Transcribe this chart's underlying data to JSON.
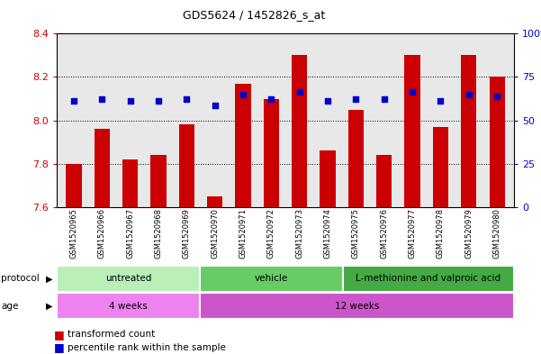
{
  "title": "GDS5624 / 1452826_s_at",
  "samples": [
    "GSM1520965",
    "GSM1520966",
    "GSM1520967",
    "GSM1520968",
    "GSM1520969",
    "GSM1520970",
    "GSM1520971",
    "GSM1520972",
    "GSM1520973",
    "GSM1520974",
    "GSM1520975",
    "GSM1520976",
    "GSM1520977",
    "GSM1520978",
    "GSM1520979",
    "GSM1520980"
  ],
  "bar_values": [
    7.8,
    7.96,
    7.82,
    7.84,
    7.98,
    7.65,
    8.17,
    8.1,
    8.3,
    7.86,
    8.05,
    7.84,
    8.3,
    7.97,
    8.3,
    8.2
  ],
  "dot_values": [
    8.09,
    8.1,
    8.09,
    8.09,
    8.1,
    8.07,
    8.12,
    8.1,
    8.13,
    8.09,
    8.1,
    8.1,
    8.13,
    8.09,
    8.12,
    8.11
  ],
  "ylim_left": [
    7.6,
    8.4
  ],
  "yticks_left": [
    7.6,
    7.8,
    8.0,
    8.2,
    8.4
  ],
  "yticks_right": [
    0,
    25,
    50,
    75,
    100
  ],
  "bar_color": "#cc0000",
  "dot_color": "#0000cc",
  "bar_bottom": 7.6,
  "protocol_groups": [
    {
      "label": "untreated",
      "start": 0,
      "end": 5
    },
    {
      "label": "vehicle",
      "start": 5,
      "end": 10
    },
    {
      "label": "L-methionine and valproic acid",
      "start": 10,
      "end": 16
    }
  ],
  "protocol_colors": [
    "#b8f0b8",
    "#66cc66",
    "#44aa44"
  ],
  "age_groups": [
    {
      "label": "4 weeks",
      "start": 0,
      "end": 5
    },
    {
      "label": "12 weeks",
      "start": 5,
      "end": 16
    }
  ],
  "age_colors": [
    "#ee82ee",
    "#cc55cc"
  ],
  "tick_color_left": "#cc0000",
  "tick_color_right": "#0000cc",
  "plot_bg": "#e8e8e8",
  "xtick_bg": "#d0d0d0"
}
